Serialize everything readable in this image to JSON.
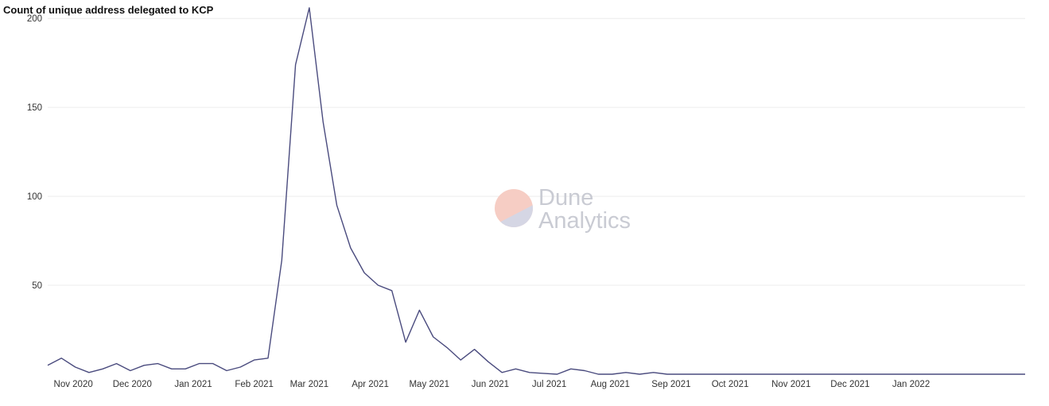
{
  "chart_data": {
    "type": "line",
    "title": "Count of unique address delegated to KCP",
    "xlabel": "",
    "ylabel": "",
    "ylim": [
      0,
      205
    ],
    "grid": true,
    "y_ticks": [
      50,
      100,
      150,
      200
    ],
    "x_tick_labels": [
      "Nov 2020",
      "Dec 2020",
      "Jan 2021",
      "Feb 2021",
      "Mar 2021",
      "Apr 2021",
      "May 2021",
      "Jun 2021",
      "Jul 2021",
      "Aug 2021",
      "Sep 2021",
      "Oct 2021",
      "Nov 2021",
      "Dec 2021",
      "Jan 2022"
    ],
    "x_tick_dates": [
      "2020-11-01",
      "2020-12-01",
      "2021-01-01",
      "2021-02-01",
      "2021-03-01",
      "2021-04-01",
      "2021-05-01",
      "2021-06-01",
      "2021-07-01",
      "2021-08-01",
      "2021-09-01",
      "2021-10-01",
      "2021-11-01",
      "2021-12-01",
      "2022-01-01"
    ],
    "x_range": [
      "2020-10-19",
      "2022-02-28"
    ],
    "series": [
      {
        "color": "#4a4b7e",
        "x": [
          "2020-10-19",
          "2020-10-26",
          "2020-11-02",
          "2020-11-09",
          "2020-11-16",
          "2020-11-23",
          "2020-11-30",
          "2020-12-07",
          "2020-12-14",
          "2020-12-21",
          "2020-12-28",
          "2021-01-04",
          "2021-01-11",
          "2021-01-18",
          "2021-01-25",
          "2021-02-01",
          "2021-02-08",
          "2021-02-15",
          "2021-02-22",
          "2021-03-01",
          "2021-03-08",
          "2021-03-15",
          "2021-03-22",
          "2021-03-29",
          "2021-04-05",
          "2021-04-12",
          "2021-04-19",
          "2021-04-26",
          "2021-05-03",
          "2021-05-10",
          "2021-05-17",
          "2021-05-24",
          "2021-05-31",
          "2021-06-07",
          "2021-06-14",
          "2021-06-21",
          "2021-06-28",
          "2021-07-05",
          "2021-07-12",
          "2021-07-19",
          "2021-07-26",
          "2021-08-02",
          "2021-08-09",
          "2021-08-16",
          "2021-08-23",
          "2021-08-30",
          "2021-09-06",
          "2021-09-13",
          "2021-09-20",
          "2021-09-27",
          "2021-10-04",
          "2021-10-11",
          "2021-10-18",
          "2021-10-25",
          "2021-11-01",
          "2021-11-08",
          "2021-11-15",
          "2021-11-22",
          "2021-11-29",
          "2021-12-06",
          "2021-12-13",
          "2021-12-20",
          "2021-12-27",
          "2022-01-03",
          "2022-01-10",
          "2022-01-17",
          "2022-01-24",
          "2022-01-31",
          "2022-02-07",
          "2022-02-14",
          "2022-02-21",
          "2022-02-28"
        ],
        "values": [
          5,
          9,
          4,
          1,
          3,
          6,
          2,
          5,
          6,
          3,
          3,
          6,
          6,
          2,
          4,
          8,
          9,
          64,
          174,
          206,
          142,
          95,
          71,
          57,
          50,
          47,
          18,
          36,
          21,
          15,
          8,
          14,
          7,
          1,
          3,
          1,
          0.5,
          0,
          3,
          2,
          0,
          0,
          1,
          0,
          1,
          0,
          0,
          0,
          0,
          0,
          0,
          0,
          0,
          0,
          0,
          0,
          0,
          0,
          0,
          0,
          0,
          0,
          0,
          0,
          0,
          0,
          0,
          0,
          0,
          0,
          0,
          0
        ]
      }
    ]
  },
  "watermark": {
    "line1": "Dune",
    "line2": "Analytics",
    "colors": [
      "#f6cdc4",
      "#d5d6e4"
    ]
  }
}
